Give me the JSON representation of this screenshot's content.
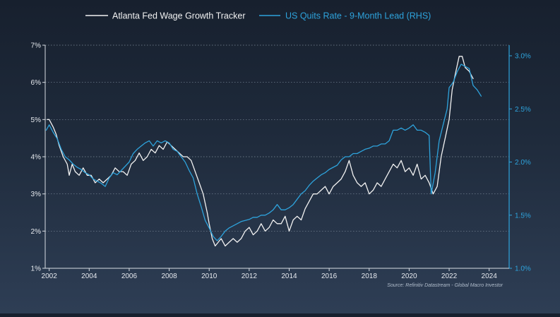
{
  "chart_data": {
    "type": "line",
    "legend_position": "top-center",
    "grid": true,
    "source": "Source: Refinitiv Datastream - Global Macro Investor",
    "x_axis": {
      "range": [
        2001.8,
        2025.0
      ],
      "ticks": [
        2002,
        2004,
        2006,
        2008,
        2010,
        2012,
        2014,
        2016,
        2018,
        2020,
        2022,
        2024
      ],
      "tick_labels": [
        "2002",
        "2004",
        "2006",
        "2008",
        "2010",
        "2012",
        "2014",
        "2016",
        "2018",
        "2020",
        "2022",
        "2024"
      ]
    },
    "y_axis_left": {
      "range": [
        1,
        7
      ],
      "ticks": [
        1,
        2,
        3,
        4,
        5,
        6,
        7
      ],
      "tick_labels": [
        "1%",
        "2%",
        "3%",
        "4%",
        "5%",
        "6%",
        "7%"
      ]
    },
    "y_axis_right": {
      "range": [
        1.0,
        3.1
      ],
      "ticks": [
        1.0,
        1.5,
        2.0,
        2.5,
        3.0
      ],
      "tick_labels": [
        "1.0%",
        "1.5%",
        "2.0%",
        "2.5%",
        "3.0%"
      ]
    },
    "series": [
      {
        "name": "Atlanta Fed Wage Growth Tracker",
        "axis": "left",
        "color": "#f2f2f2",
        "points": [
          [
            2001.9,
            5.0
          ],
          [
            2002.0,
            5.0
          ],
          [
            2002.2,
            4.8
          ],
          [
            2002.35,
            4.6
          ],
          [
            2002.5,
            4.3
          ],
          [
            2002.7,
            4.0
          ],
          [
            2002.9,
            3.8
          ],
          [
            2003.0,
            3.5
          ],
          [
            2003.15,
            3.8
          ],
          [
            2003.3,
            3.6
          ],
          [
            2003.5,
            3.5
          ],
          [
            2003.7,
            3.7
          ],
          [
            2003.9,
            3.5
          ],
          [
            2004.1,
            3.5
          ],
          [
            2004.3,
            3.3
          ],
          [
            2004.5,
            3.4
          ],
          [
            2004.7,
            3.3
          ],
          [
            2004.9,
            3.4
          ],
          [
            2005.1,
            3.5
          ],
          [
            2005.3,
            3.7
          ],
          [
            2005.5,
            3.6
          ],
          [
            2005.7,
            3.6
          ],
          [
            2005.9,
            3.5
          ],
          [
            2006.1,
            3.8
          ],
          [
            2006.3,
            3.9
          ],
          [
            2006.5,
            4.1
          ],
          [
            2006.7,
            3.9
          ],
          [
            2006.9,
            4.0
          ],
          [
            2007.1,
            4.2
          ],
          [
            2007.3,
            4.1
          ],
          [
            2007.5,
            4.3
          ],
          [
            2007.7,
            4.2
          ],
          [
            2007.9,
            4.4
          ],
          [
            2008.1,
            4.3
          ],
          [
            2008.3,
            4.2
          ],
          [
            2008.5,
            4.1
          ],
          [
            2008.7,
            4.0
          ],
          [
            2008.9,
            4.0
          ],
          [
            2009.1,
            3.9
          ],
          [
            2009.3,
            3.6
          ],
          [
            2009.5,
            3.3
          ],
          [
            2009.7,
            3.0
          ],
          [
            2009.9,
            2.5
          ],
          [
            2010.0,
            2.2
          ],
          [
            2010.15,
            1.8
          ],
          [
            2010.3,
            1.6
          ],
          [
            2010.45,
            1.7
          ],
          [
            2010.6,
            1.8
          ],
          [
            2010.8,
            1.6
          ],
          [
            2011.0,
            1.7
          ],
          [
            2011.2,
            1.8
          ],
          [
            2011.4,
            1.7
          ],
          [
            2011.6,
            1.8
          ],
          [
            2011.8,
            2.0
          ],
          [
            2012.0,
            2.1
          ],
          [
            2012.2,
            1.9
          ],
          [
            2012.4,
            2.0
          ],
          [
            2012.6,
            2.2
          ],
          [
            2012.8,
            2.0
          ],
          [
            2013.0,
            2.1
          ],
          [
            2013.2,
            2.3
          ],
          [
            2013.4,
            2.2
          ],
          [
            2013.6,
            2.2
          ],
          [
            2013.8,
            2.4
          ],
          [
            2014.0,
            2.0
          ],
          [
            2014.2,
            2.3
          ],
          [
            2014.4,
            2.4
          ],
          [
            2014.6,
            2.3
          ],
          [
            2014.8,
            2.6
          ],
          [
            2015.0,
            2.8
          ],
          [
            2015.2,
            3.0
          ],
          [
            2015.4,
            3.0
          ],
          [
            2015.6,
            3.1
          ],
          [
            2015.8,
            3.2
          ],
          [
            2016.0,
            3.0
          ],
          [
            2016.2,
            3.2
          ],
          [
            2016.4,
            3.3
          ],
          [
            2016.6,
            3.4
          ],
          [
            2016.8,
            3.6
          ],
          [
            2017.0,
            3.9
          ],
          [
            2017.2,
            3.5
          ],
          [
            2017.4,
            3.3
          ],
          [
            2017.6,
            3.2
          ],
          [
            2017.8,
            3.3
          ],
          [
            2018.0,
            3.0
          ],
          [
            2018.2,
            3.1
          ],
          [
            2018.4,
            3.3
          ],
          [
            2018.6,
            3.2
          ],
          [
            2018.8,
            3.4
          ],
          [
            2019.0,
            3.6
          ],
          [
            2019.2,
            3.8
          ],
          [
            2019.4,
            3.7
          ],
          [
            2019.6,
            3.9
          ],
          [
            2019.8,
            3.6
          ],
          [
            2020.0,
            3.7
          ],
          [
            2020.2,
            3.5
          ],
          [
            2020.4,
            3.8
          ],
          [
            2020.6,
            3.4
          ],
          [
            2020.8,
            3.5
          ],
          [
            2021.0,
            3.3
          ],
          [
            2021.2,
            3.0
          ],
          [
            2021.4,
            3.2
          ],
          [
            2021.6,
            4.0
          ],
          [
            2021.8,
            4.5
          ],
          [
            2022.0,
            5.0
          ],
          [
            2022.15,
            5.8
          ],
          [
            2022.3,
            6.2
          ],
          [
            2022.5,
            6.7
          ],
          [
            2022.65,
            6.7
          ],
          [
            2022.8,
            6.4
          ],
          [
            2023.0,
            6.3
          ],
          [
            2023.2,
            6.1
          ]
        ]
      },
      {
        "name": "US Quits Rate - 9-Month Lead (RHS)",
        "axis": "right",
        "color": "#2ea3dc",
        "points": [
          [
            2001.85,
            2.3
          ],
          [
            2002.0,
            2.35
          ],
          [
            2002.2,
            2.28
          ],
          [
            2002.4,
            2.22
          ],
          [
            2002.6,
            2.12
          ],
          [
            2002.8,
            2.05
          ],
          [
            2003.0,
            2.02
          ],
          [
            2003.2,
            1.98
          ],
          [
            2003.4,
            1.95
          ],
          [
            2003.6,
            1.93
          ],
          [
            2003.8,
            1.9
          ],
          [
            2004.0,
            1.88
          ],
          [
            2004.2,
            1.84
          ],
          [
            2004.4,
            1.82
          ],
          [
            2004.6,
            1.8
          ],
          [
            2004.8,
            1.77
          ],
          [
            2005.0,
            1.85
          ],
          [
            2005.2,
            1.9
          ],
          [
            2005.4,
            1.88
          ],
          [
            2005.6,
            1.92
          ],
          [
            2005.8,
            1.96
          ],
          [
            2006.0,
            2.0
          ],
          [
            2006.2,
            2.08
          ],
          [
            2006.4,
            2.12
          ],
          [
            2006.6,
            2.15
          ],
          [
            2006.8,
            2.18
          ],
          [
            2007.0,
            2.2
          ],
          [
            2007.2,
            2.15
          ],
          [
            2007.4,
            2.2
          ],
          [
            2007.6,
            2.18
          ],
          [
            2007.8,
            2.2
          ],
          [
            2008.0,
            2.18
          ],
          [
            2008.2,
            2.12
          ],
          [
            2008.4,
            2.1
          ],
          [
            2008.6,
            2.05
          ],
          [
            2008.8,
            2.0
          ],
          [
            2009.0,
            1.92
          ],
          [
            2009.2,
            1.85
          ],
          [
            2009.4,
            1.7
          ],
          [
            2009.6,
            1.58
          ],
          [
            2009.8,
            1.45
          ],
          [
            2010.0,
            1.38
          ],
          [
            2010.2,
            1.3
          ],
          [
            2010.4,
            1.26
          ],
          [
            2010.6,
            1.3
          ],
          [
            2010.8,
            1.35
          ],
          [
            2011.0,
            1.38
          ],
          [
            2011.2,
            1.4
          ],
          [
            2011.4,
            1.42
          ],
          [
            2011.6,
            1.44
          ],
          [
            2011.8,
            1.45
          ],
          [
            2012.0,
            1.46
          ],
          [
            2012.2,
            1.48
          ],
          [
            2012.4,
            1.48
          ],
          [
            2012.6,
            1.5
          ],
          [
            2012.8,
            1.5
          ],
          [
            2013.0,
            1.52
          ],
          [
            2013.2,
            1.55
          ],
          [
            2013.4,
            1.6
          ],
          [
            2013.6,
            1.55
          ],
          [
            2013.8,
            1.55
          ],
          [
            2014.0,
            1.57
          ],
          [
            2014.2,
            1.6
          ],
          [
            2014.4,
            1.65
          ],
          [
            2014.6,
            1.7
          ],
          [
            2014.8,
            1.73
          ],
          [
            2015.0,
            1.78
          ],
          [
            2015.2,
            1.82
          ],
          [
            2015.4,
            1.85
          ],
          [
            2015.6,
            1.88
          ],
          [
            2015.8,
            1.9
          ],
          [
            2016.0,
            1.93
          ],
          [
            2016.2,
            1.95
          ],
          [
            2016.4,
            1.97
          ],
          [
            2016.6,
            2.02
          ],
          [
            2016.8,
            2.05
          ],
          [
            2017.0,
            2.05
          ],
          [
            2017.2,
            2.08
          ],
          [
            2017.4,
            2.08
          ],
          [
            2017.6,
            2.1
          ],
          [
            2017.8,
            2.12
          ],
          [
            2018.0,
            2.13
          ],
          [
            2018.2,
            2.15
          ],
          [
            2018.4,
            2.15
          ],
          [
            2018.6,
            2.17
          ],
          [
            2018.8,
            2.17
          ],
          [
            2019.0,
            2.2
          ],
          [
            2019.2,
            2.3
          ],
          [
            2019.4,
            2.3
          ],
          [
            2019.6,
            2.32
          ],
          [
            2019.8,
            2.3
          ],
          [
            2020.0,
            2.32
          ],
          [
            2020.2,
            2.35
          ],
          [
            2020.4,
            2.3
          ],
          [
            2020.6,
            2.3
          ],
          [
            2020.8,
            2.28
          ],
          [
            2021.0,
            2.25
          ],
          [
            2021.1,
            1.7
          ],
          [
            2021.3,
            1.9
          ],
          [
            2021.5,
            2.2
          ],
          [
            2021.7,
            2.35
          ],
          [
            2021.9,
            2.5
          ],
          [
            2022.0,
            2.7
          ],
          [
            2022.2,
            2.75
          ],
          [
            2022.4,
            2.85
          ],
          [
            2022.6,
            2.92
          ],
          [
            2022.8,
            2.9
          ],
          [
            2023.0,
            2.88
          ],
          [
            2023.2,
            2.72
          ],
          [
            2023.4,
            2.68
          ],
          [
            2023.6,
            2.62
          ]
        ]
      }
    ]
  }
}
